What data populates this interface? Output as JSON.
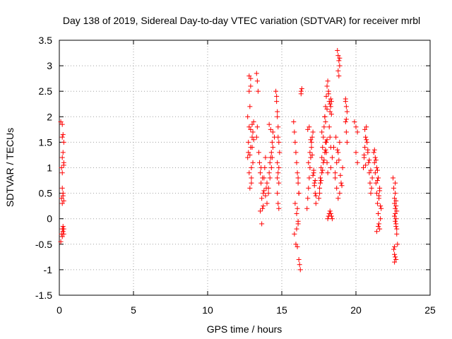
{
  "chart_data": {
    "type": "scatter",
    "title": "Day 138 of 2019, Sidereal Day-to-day VTEC variation (SDTVAR) for receiver mrbl",
    "xlabel": "GPS time / hours",
    "ylabel": "SDTVAR / TECUs",
    "xlim": [
      0,
      25
    ],
    "ylim": [
      -1.5,
      3.5
    ],
    "xticks": [
      "0",
      "5",
      "10",
      "15",
      "20",
      "25"
    ],
    "yticks": [
      "-1.5",
      "-1",
      "-0.5",
      "0",
      "0.5",
      "1",
      "1.5",
      "2",
      "2.5",
      "3",
      "3.5"
    ],
    "grid": true,
    "marker": "plus",
    "color": "#ff0000",
    "series": [
      {
        "x": [
          0.1,
          0.15,
          0.2,
          0.2,
          0.25,
          0.25,
          0.3,
          0.3,
          0.15,
          0.2,
          0.25,
          0.3,
          0.2,
          0.25,
          0.15,
          0.2,
          0.3,
          0.25,
          0.2,
          0.3,
          0.1,
          0.2,
          0.25,
          0.3,
          0.2,
          12.7,
          12.75,
          12.8,
          12.85,
          12.9,
          12.95,
          13.0,
          13.05,
          13.1,
          12.8,
          12.9,
          13.0,
          12.85,
          12.95,
          13.05,
          12.75,
          12.8,
          12.9,
          12.7,
          12.8,
          12.9,
          13.0,
          13.1,
          12.85,
          12.95,
          13.3,
          13.35,
          13.4,
          13.3,
          13.35,
          13.45,
          13.5,
          13.55,
          13.6,
          13.65,
          13.7,
          13.75,
          13.8,
          13.85,
          13.9,
          13.95,
          14.0,
          13.6,
          13.7,
          13.8,
          13.9,
          14.0,
          13.55,
          13.65,
          13.75,
          14.1,
          14.15,
          14.2,
          14.25,
          14.3,
          14.35,
          14.4,
          14.1,
          14.2,
          14.3,
          14.4,
          14.5,
          14.15,
          14.25,
          14.35,
          14.6,
          14.65,
          14.7,
          14.75,
          14.8,
          14.85,
          14.7,
          14.75,
          14.8,
          14.7,
          14.75,
          14.8,
          14.65,
          14.7,
          14.75,
          14.8,
          14.7,
          15.8,
          15.85,
          15.9,
          15.95,
          16.0,
          16.05,
          16.1,
          16.15,
          15.9,
          16.0,
          16.1,
          15.85,
          15.95,
          16.05,
          16.0,
          16.1,
          16.05,
          16.15,
          16.1,
          16.15,
          16.2,
          16.25,
          16.3,
          16.35,
          16.3,
          16.7,
          16.75,
          16.8,
          16.85,
          16.9,
          16.95,
          17.0,
          17.05,
          17.1,
          17.15,
          17.2,
          17.25,
          17.3,
          16.8,
          16.9,
          17.0,
          17.1,
          17.2,
          16.75,
          16.85,
          16.95,
          17.05,
          17.15,
          17.25,
          17.3,
          17.5,
          17.55,
          17.6,
          17.65,
          17.7,
          17.75,
          17.8,
          17.85,
          17.9,
          17.95,
          18.0,
          18.05,
          18.1,
          17.6,
          17.7,
          17.8,
          17.9,
          18.0,
          17.55,
          17.65,
          17.75,
          17.85,
          17.95,
          18.05,
          17.7,
          17.9,
          17.95,
          18.0,
          18.05,
          18.1,
          18.15,
          18.2,
          18.25,
          18.3,
          18.35,
          17.95,
          18.05,
          18.15,
          18.25,
          18.3,
          18.35,
          18.2,
          18.25,
          18.3,
          18.1,
          18.15,
          18.2,
          18.25,
          18.3,
          18.35,
          18.4,
          18.3,
          18.4,
          18.5,
          18.6,
          18.7,
          18.8,
          18.9,
          19.0,
          18.6,
          18.7,
          18.8,
          18.9,
          18.65,
          18.75,
          18.85,
          18.95,
          19.05,
          19.1,
          18.75,
          18.8,
          18.85,
          18.9,
          18.8,
          18.85,
          18.9,
          19.3,
          19.35,
          19.4,
          19.3,
          19.35,
          19.4,
          19.3,
          19.35,
          19.9,
          20.0,
          20.1,
          20.0,
          20.1,
          20.5,
          20.55,
          20.6,
          20.65,
          20.7,
          20.75,
          20.8,
          20.85,
          20.9,
          20.95,
          21.0,
          21.05,
          21.1,
          20.6,
          20.7,
          20.8,
          20.9,
          21.0,
          20.55,
          20.65,
          21.2,
          21.25,
          21.3,
          21.35,
          21.4,
          21.45,
          21.5,
          21.55,
          21.6,
          21.65,
          21.7,
          21.3,
          21.4,
          21.5,
          21.6,
          21.25,
          21.35,
          21.45,
          21.55,
          21.65,
          21.4,
          21.5,
          21.6,
          21.45,
          21.55,
          22.5,
          22.55,
          22.6,
          22.65,
          22.7,
          22.75,
          22.8,
          22.6,
          22.65,
          22.7,
          22.75,
          22.55,
          22.6,
          22.65,
          22.7,
          22.6,
          22.65,
          22.7,
          22.6,
          22.65,
          22.7,
          22.65,
          22.7,
          22.75,
          22.6
        ],
        "y": [
          -0.45,
          -0.3,
          -0.2,
          -0.35,
          -0.25,
          -0.15,
          -0.3,
          -0.2,
          0.4,
          0.6,
          0.5,
          0.35,
          0.3,
          0.45,
          1.0,
          1.2,
          1.1,
          1.3,
          1.6,
          1.5,
          1.9,
          1.85,
          1.65,
          1.05,
          0.9,
          1.2,
          1.5,
          1.8,
          2.2,
          2.6,
          1.0,
          1.4,
          1.7,
          1.9,
          2.8,
          2.75,
          1.6,
          0.6,
          0.7,
          1.1,
          1.3,
          0.9,
          1.4,
          2.0,
          2.5,
          1.75,
          1.85,
          1.55,
          1.25,
          0.8,
          2.85,
          2.7,
          2.5,
          1.6,
          1.8,
          1.3,
          1.1,
          0.9,
          0.7,
          0.4,
          0.2,
          0.5,
          0.8,
          1.0,
          1.2,
          0.6,
          0.3,
          1.0,
          0.8,
          0.55,
          0.45,
          0.7,
          0.15,
          -0.1,
          0.25,
          0.6,
          0.9,
          1.1,
          1.2,
          1.3,
          1.5,
          1.7,
          0.5,
          0.8,
          1.0,
          1.4,
          1.6,
          1.85,
          1.75,
          1.2,
          2.5,
          2.4,
          2.0,
          1.6,
          1.5,
          1.3,
          1.1,
          0.9,
          0.7,
          0.5,
          0.3,
          0.2,
          2.3,
          2.1,
          1.8,
          1.0,
          0.8,
          1.9,
          1.7,
          1.5,
          1.3,
          1.1,
          0.9,
          0.7,
          0.5,
          0.3,
          0.1,
          -0.1,
          -0.3,
          -0.5,
          -0.55,
          -0.2,
          -0.05,
          0.2,
          0.5,
          0.8,
          -0.8,
          -0.9,
          -1.0,
          2.5,
          2.55,
          2.45,
          0.2,
          0.4,
          0.6,
          0.8,
          1.0,
          1.2,
          1.4,
          1.6,
          1.7,
          0.9,
          0.7,
          0.5,
          0.3,
          1.1,
          1.3,
          1.5,
          0.85,
          0.65,
          1.75,
          1.8,
          1.55,
          1.25,
          0.95,
          0.75,
          0.45,
          0.4,
          0.6,
          0.8,
          1.0,
          1.2,
          1.4,
          1.6,
          1.8,
          2.0,
          1.5,
          1.3,
          1.1,
          0.9,
          0.7,
          0.9,
          1.1,
          1.3,
          1.5,
          0.5,
          0.75,
          0.95,
          1.15,
          1.35,
          1.55,
          1.7,
          2.0,
          2.2,
          2.4,
          2.6,
          2.7,
          2.5,
          2.3,
          2.1,
          2.2,
          2.3,
          1.9,
          2.15,
          2.45,
          2.25,
          2.35,
          2.05,
          1.8,
          1.6,
          1.4,
          0.0,
          0.05,
          0.1,
          0.15,
          0.1,
          0.05,
          0.0,
          1.0,
          1.2,
          1.4,
          0.8,
          0.6,
          0.4,
          0.5,
          0.7,
          0.9,
          1.1,
          1.3,
          1.5,
          1.6,
          1.35,
          1.15,
          0.85,
          0.65,
          1.0,
          3.3,
          3.2,
          3.1,
          3.0,
          2.9,
          2.8,
          3.15,
          2.3,
          2.2,
          2.1,
          1.9,
          1.7,
          1.5,
          2.35,
          1.95,
          1.9,
          1.8,
          1.7,
          1.3,
          1.1,
          1.0,
          1.2,
          1.4,
          1.6,
          1.8,
          1.5,
          1.3,
          1.1,
          0.9,
          0.7,
          0.5,
          0.6,
          0.8,
          1.75,
          1.55,
          1.35,
          1.15,
          0.95,
          1.25,
          1.05,
          1.3,
          1.1,
          0.9,
          0.7,
          0.5,
          0.3,
          0.1,
          -0.1,
          -0.2,
          0.0,
          0.2,
          1.2,
          1.0,
          0.8,
          0.6,
          1.35,
          1.15,
          0.95,
          0.4,
          0.25,
          -0.25,
          -0.15,
          0.55,
          0.75,
          0.45,
          0.8,
          0.6,
          0.4,
          0.2,
          0.0,
          -0.2,
          -0.5,
          0.3,
          0.1,
          -0.1,
          -0.3,
          -0.6,
          -0.7,
          -0.75,
          -0.8,
          -0.85,
          0.5,
          0.25,
          0.05,
          -0.05,
          -0.15,
          0.7,
          0.35,
          0.15,
          -0.55
        ]
      }
    ]
  }
}
